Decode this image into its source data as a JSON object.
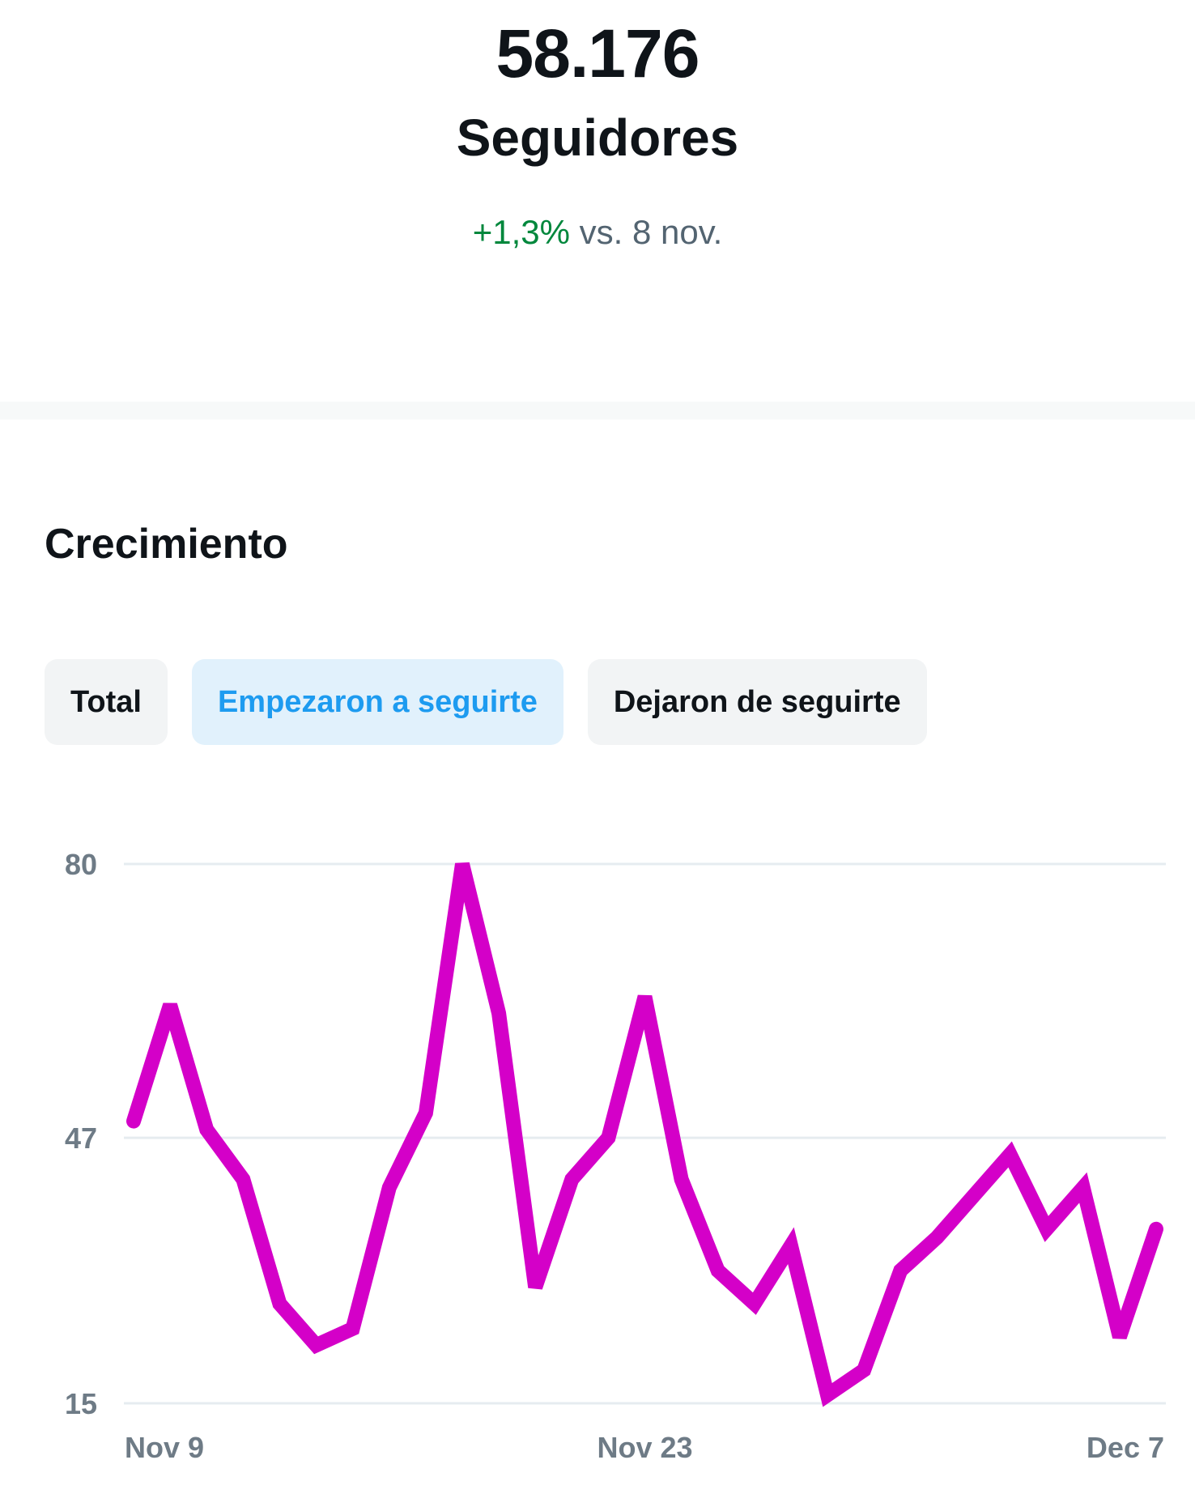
{
  "summary": {
    "value": "58.176",
    "label": "Seguidores",
    "change": "+1,3%",
    "comparison": "vs. 8 nov."
  },
  "section": {
    "title": "Crecimiento"
  },
  "tabs": [
    {
      "label": "Total",
      "active": false
    },
    {
      "label": "Empezaron a seguirte",
      "active": true
    },
    {
      "label": "Dejaron de seguirte",
      "active": false
    }
  ],
  "colors": {
    "series": "#d400c8",
    "active_tab_text": "#1d9bf0",
    "positive_change": "#00873c"
  },
  "chart_data": {
    "type": "line",
    "x": [
      "Nov 9",
      "Nov 10",
      "Nov 11",
      "Nov 12",
      "Nov 13",
      "Nov 14",
      "Nov 15",
      "Nov 16",
      "Nov 17",
      "Nov 18",
      "Nov 19",
      "Nov 20",
      "Nov 21",
      "Nov 22",
      "Nov 23",
      "Nov 24",
      "Nov 25",
      "Nov 26",
      "Nov 27",
      "Nov 28",
      "Nov 29",
      "Nov 30",
      "Dec 1",
      "Dec 2",
      "Dec 3",
      "Dec 4",
      "Dec 5",
      "Dec 6",
      "Dec 7"
    ],
    "values": [
      49,
      63,
      48,
      42,
      27,
      22,
      24,
      41,
      50,
      80,
      62,
      29,
      42,
      47,
      64,
      42,
      31,
      27,
      34,
      16,
      19,
      31,
      35,
      40,
      45,
      36,
      41,
      23,
      36
    ],
    "xtick_labels": [
      "Nov 9",
      "Nov 23",
      "Dec 7"
    ],
    "yticks": [
      15,
      47,
      80
    ],
    "ylim": [
      15,
      80
    ],
    "grid": true
  }
}
